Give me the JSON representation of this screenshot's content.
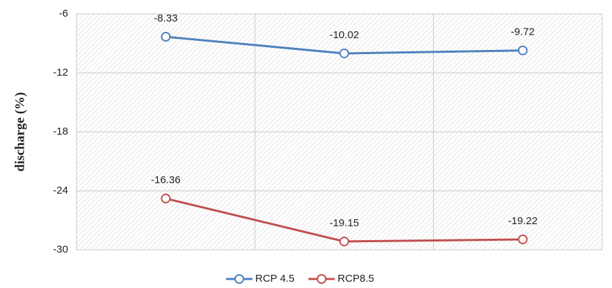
{
  "chart_data": {
    "type": "line",
    "y_label": "discharge (%)",
    "categories": [
      null,
      null,
      null
    ],
    "series": [
      {
        "name": "RCP 4.5",
        "color": "#4f81bd",
        "values": [
          -8.33,
          -10.02,
          -9.72
        ]
      },
      {
        "name": "RCP8.5",
        "color": "#c0504d",
        "values": [
          -24.78,
          -29.15,
          -28.94
        ]
      }
    ],
    "annotations": [
      {
        "text": "-16.36",
        "series": 1,
        "index": 0
      },
      {
        "text": "-19.15",
        "series": 1,
        "index": 1
      },
      {
        "text": "-19.22",
        "series": 1,
        "index": 2
      }
    ],
    "ylim": [
      -30,
      -6
    ],
    "yticks": [
      -6,
      -12,
      -18,
      -24,
      -30
    ],
    "grid": true,
    "legend": "bottom"
  }
}
